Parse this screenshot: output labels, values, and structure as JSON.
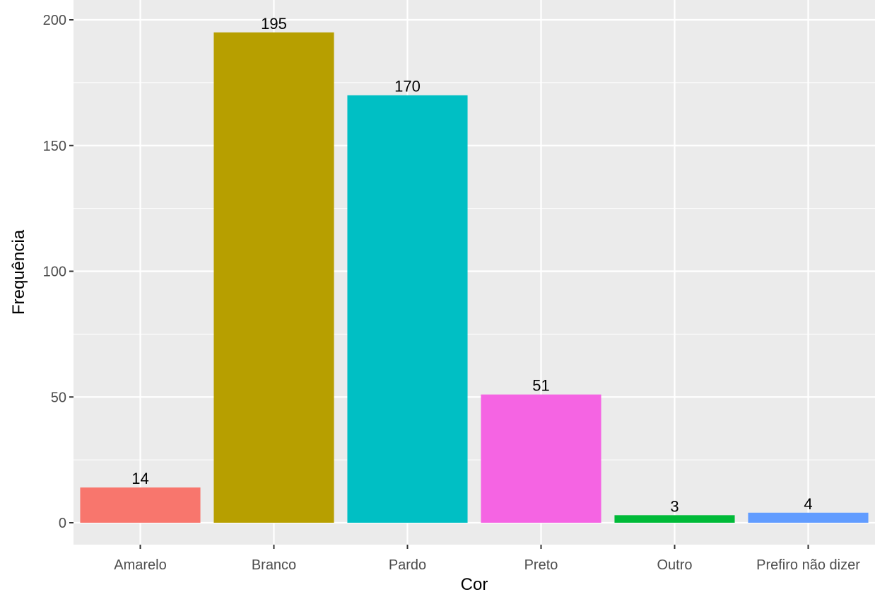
{
  "chart_data": {
    "type": "bar",
    "xlabel": "Cor",
    "ylabel": "Frequência",
    "categories": [
      "Amarelo",
      "Branco",
      "Pardo",
      "Preto",
      "Outro",
      "Prefiro não dizer"
    ],
    "values": [
      14,
      195,
      170,
      51,
      3,
      4
    ],
    "data_labels": [
      "14",
      "195",
      "170",
      "51",
      "3",
      "4"
    ],
    "colors": [
      "#F8766D",
      "#B79F00",
      "#00BFC4",
      "#F564E3",
      "#00BA38",
      "#619CFF"
    ],
    "ylim": [
      -8.5,
      204
    ],
    "yticks": [
      0,
      50,
      100,
      150,
      200
    ],
    "ytick_labels": [
      "0",
      "50",
      "100",
      "150",
      "200"
    ],
    "grid": true,
    "legend": "none",
    "panel_background": "#EBEBEB",
    "grid_color": "#FFFFFF"
  }
}
